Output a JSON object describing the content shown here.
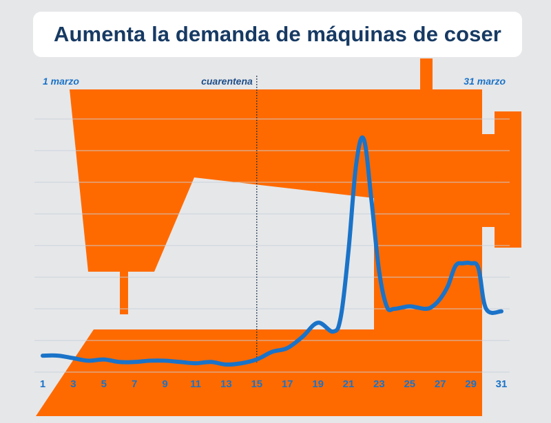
{
  "header": {
    "title": "Aumenta la demanda de máquinas de coser"
  },
  "colors": {
    "background": "#e6e7e9",
    "machine": "#ff6a00",
    "line": "#1a73c8",
    "title_text": "#173a63",
    "annotation": "#1f4f8a",
    "tick": "#1a73c8",
    "grid": "#c9d1dc"
  },
  "chart_data": {
    "type": "line",
    "title": "Aumenta la demanda de máquinas de coser",
    "xlabel": "",
    "ylabel": "",
    "x_ticks": [
      "1",
      "3",
      "5",
      "7",
      "9",
      "11",
      "13",
      "15",
      "17",
      "19",
      "21",
      "23",
      "25",
      "27",
      "29",
      "31"
    ],
    "xlim": [
      1,
      31
    ],
    "ylim": [
      0,
      100
    ],
    "grid": true,
    "annotations": [
      {
        "label": "1 marzo",
        "x": 1
      },
      {
        "label": "cuarentena",
        "x": 15
      },
      {
        "label": "31 marzo",
        "x": 31
      }
    ],
    "series": [
      {
        "x": [
          1,
          2,
          3,
          4,
          5,
          6,
          7,
          8,
          9,
          10,
          11,
          12,
          13,
          14,
          15,
          16,
          17,
          18,
          19,
          20,
          20.5,
          21,
          21.5,
          22,
          22.5,
          23,
          23.5,
          24,
          25,
          26,
          26.5,
          27,
          27.5,
          28,
          28.5,
          29,
          29.5,
          30,
          31
        ],
        "values": [
          6.5,
          6.5,
          5.5,
          4.5,
          5,
          4,
          4,
          4.5,
          4.5,
          4,
          3.5,
          4,
          3,
          3.5,
          5,
          8,
          9.5,
          14,
          19.5,
          16,
          22,
          48,
          82,
          92,
          68,
          40,
          26,
          25,
          26,
          25,
          26,
          29,
          34,
          42,
          43,
          43,
          41,
          25,
          24
        ]
      }
    ]
  }
}
